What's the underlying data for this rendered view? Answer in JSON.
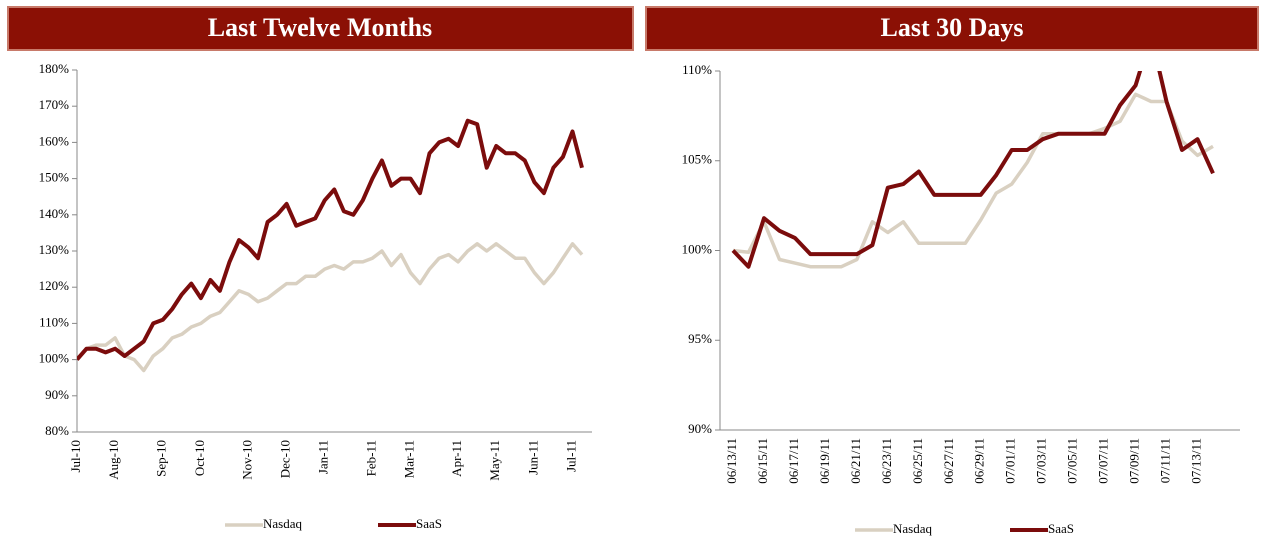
{
  "chart_data": [
    {
      "type": "line",
      "title": "Last Twelve Months",
      "categories": [
        "Jul-10",
        null,
        null,
        null,
        "Aug-10",
        null,
        null,
        null,
        null,
        "Sep-10",
        null,
        null,
        null,
        "Oct-10",
        null,
        null,
        null,
        null,
        "Nov-10",
        null,
        null,
        null,
        "Dec-10",
        null,
        null,
        null,
        "Jan-11",
        null,
        null,
        null,
        null,
        "Feb-11",
        null,
        null,
        null,
        "Mar-11",
        null,
        null,
        null,
        null,
        "Apr-11",
        null,
        null,
        null,
        "May-11",
        null,
        null,
        null,
        "Jun-11",
        null,
        null,
        null,
        "Jul-11",
        null
      ],
      "series": [
        {
          "name": "Nasdaq",
          "color": "#d9d0c1",
          "values": [
            100,
            103,
            104,
            104,
            106,
            101,
            100,
            97,
            101,
            103,
            106,
            107,
            109,
            110,
            112,
            113,
            116,
            119,
            118,
            116,
            117,
            119,
            121,
            121,
            123,
            123,
            125,
            126,
            125,
            127,
            127,
            128,
            130,
            126,
            129,
            124,
            121,
            125,
            128,
            129,
            127,
            130,
            132,
            130,
            132,
            130,
            128,
            128,
            124,
            121,
            124,
            128,
            132,
            129
          ]
        },
        {
          "name": "SaaS",
          "color": "#7b0c0c",
          "values": [
            100,
            103,
            103,
            102,
            103,
            101,
            103,
            105,
            110,
            111,
            114,
            118,
            121,
            117,
            122,
            119,
            127,
            133,
            131,
            128,
            138,
            140,
            143,
            137,
            138,
            139,
            144,
            147,
            141,
            140,
            144,
            150,
            155,
            148,
            150,
            150,
            146,
            157,
            160,
            161,
            159,
            166,
            165,
            153,
            159,
            157,
            157,
            155,
            149,
            146,
            153,
            156,
            163,
            153
          ]
        }
      ],
      "ylim": [
        80,
        180
      ],
      "yticks": [
        {
          "value": 80,
          "label": "80%"
        },
        {
          "value": 90,
          "label": "90%"
        },
        {
          "value": 100,
          "label": "100%"
        },
        {
          "value": 110,
          "label": "110%"
        },
        {
          "value": 120,
          "label": "120%"
        },
        {
          "value": 130,
          "label": "130%"
        },
        {
          "value": 140,
          "label": "140%"
        },
        {
          "value": 150,
          "label": "150%"
        },
        {
          "value": 160,
          "label": "160%"
        },
        {
          "value": 170,
          "label": "170%"
        },
        {
          "value": 180,
          "label": "180%"
        }
      ],
      "legend": "bottom"
    },
    {
      "type": "line",
      "title": "Last 30 Days",
      "categories": [
        "06/13/11",
        null,
        "06/15/11",
        null,
        "06/17/11",
        null,
        "06/19/11",
        null,
        "06/21/11",
        null,
        "06/23/11",
        null,
        "06/25/11",
        null,
        "06/27/11",
        null,
        "06/29/11",
        null,
        "07/01/11",
        null,
        "07/03/11",
        null,
        "07/05/11",
        null,
        "07/07/11",
        null,
        "07/09/11",
        null,
        "07/11/11",
        null,
        "07/13/11",
        null
      ],
      "series": [
        {
          "name": "Nasdaq",
          "color": "#d9d0c1",
          "values": [
            100,
            99.9,
            101.6,
            99.5,
            99.3,
            99.1,
            99.1,
            99.1,
            99.5,
            101.6,
            101,
            101.6,
            100.4,
            100.4,
            100.4,
            100.4,
            101.7,
            103.2,
            103.7,
            104.9,
            106.5,
            106.5,
            106.5,
            106.5,
            106.8,
            107.2,
            108.7,
            108.3,
            108.3,
            106.1,
            105.3,
            105.8
          ]
        },
        {
          "name": "SaaS",
          "color": "#7b0c0c",
          "values": [
            100,
            99.1,
            101.8,
            101.1,
            100.7,
            99.8,
            99.8,
            99.8,
            99.8,
            100.3,
            103.5,
            103.7,
            104.4,
            103.1,
            103.1,
            103.1,
            103.1,
            104.2,
            105.6,
            105.6,
            106.2,
            106.5,
            106.5,
            106.5,
            106.5,
            108.1,
            109.2,
            112,
            108.3,
            105.6,
            106.2,
            104.3
          ]
        }
      ],
      "ylim": [
        90,
        110
      ],
      "yticks": [
        {
          "value": 90,
          "label": "90%"
        },
        {
          "value": 95,
          "label": "95%"
        },
        {
          "value": 100,
          "label": "100%"
        },
        {
          "value": 105,
          "label": "105%"
        },
        {
          "value": 110,
          "label": "110%"
        }
      ],
      "legend": "bottom"
    }
  ]
}
